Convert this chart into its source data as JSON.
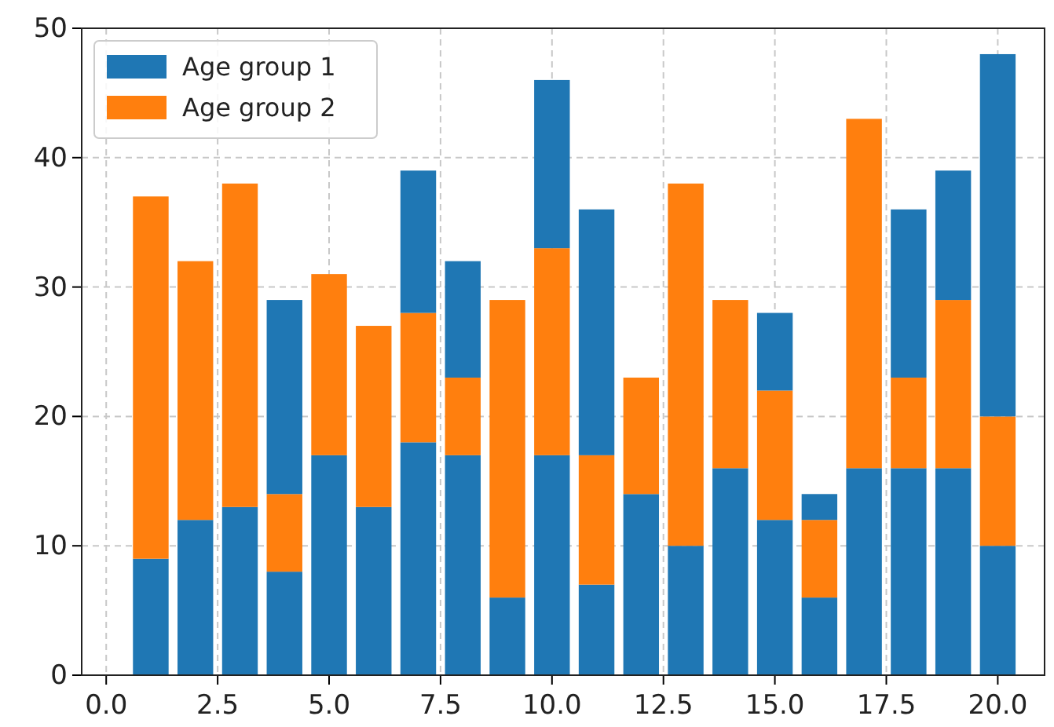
{
  "chart_data": {
    "type": "bar",
    "stacked": true,
    "x": [
      1,
      2,
      3,
      4,
      5,
      6,
      7,
      8,
      9,
      10,
      11,
      12,
      13,
      14,
      15,
      16,
      17,
      18,
      19,
      20
    ],
    "series": [
      {
        "name": "Age group 1",
        "color": "#1f77b4",
        "values": [
          9,
          12,
          13,
          8,
          17,
          13,
          18,
          17,
          6,
          17,
          7,
          14,
          10,
          16,
          12,
          6,
          16,
          16,
          16,
          10
        ]
      },
      {
        "name": "Age group 2",
        "color": "#ff7f0e",
        "values": [
          28,
          20,
          25,
          6,
          14,
          14,
          10,
          6,
          23,
          16,
          10,
          9,
          28,
          13,
          10,
          6,
          27,
          7,
          13,
          10
        ]
      },
      {
        "color": "#1f77b4",
        "values": [
          0,
          0,
          0,
          15,
          0,
          0,
          11,
          9,
          0,
          13,
          19,
          0,
          0,
          0,
          6,
          2,
          0,
          13,
          10,
          28
        ]
      }
    ],
    "xlim": [
      -0.55,
      21.05
    ],
    "xticks": [
      {
        "value": 0,
        "label": "0.0"
      },
      {
        "value": 2.5,
        "label": "2.5"
      },
      {
        "value": 5,
        "label": "5.0"
      },
      {
        "value": 7.5,
        "label": "7.5"
      },
      {
        "value": 10,
        "label": "10.0"
      },
      {
        "value": 12.5,
        "label": "12.5"
      },
      {
        "value": 15,
        "label": "15.0"
      },
      {
        "value": 17.5,
        "label": "17.5"
      },
      {
        "value": 20,
        "label": "20.0"
      }
    ],
    "ylim": [
      0,
      50
    ],
    "yticks": [
      0,
      10,
      20,
      30,
      40,
      50
    ],
    "grid": true,
    "legend": "top left"
  }
}
